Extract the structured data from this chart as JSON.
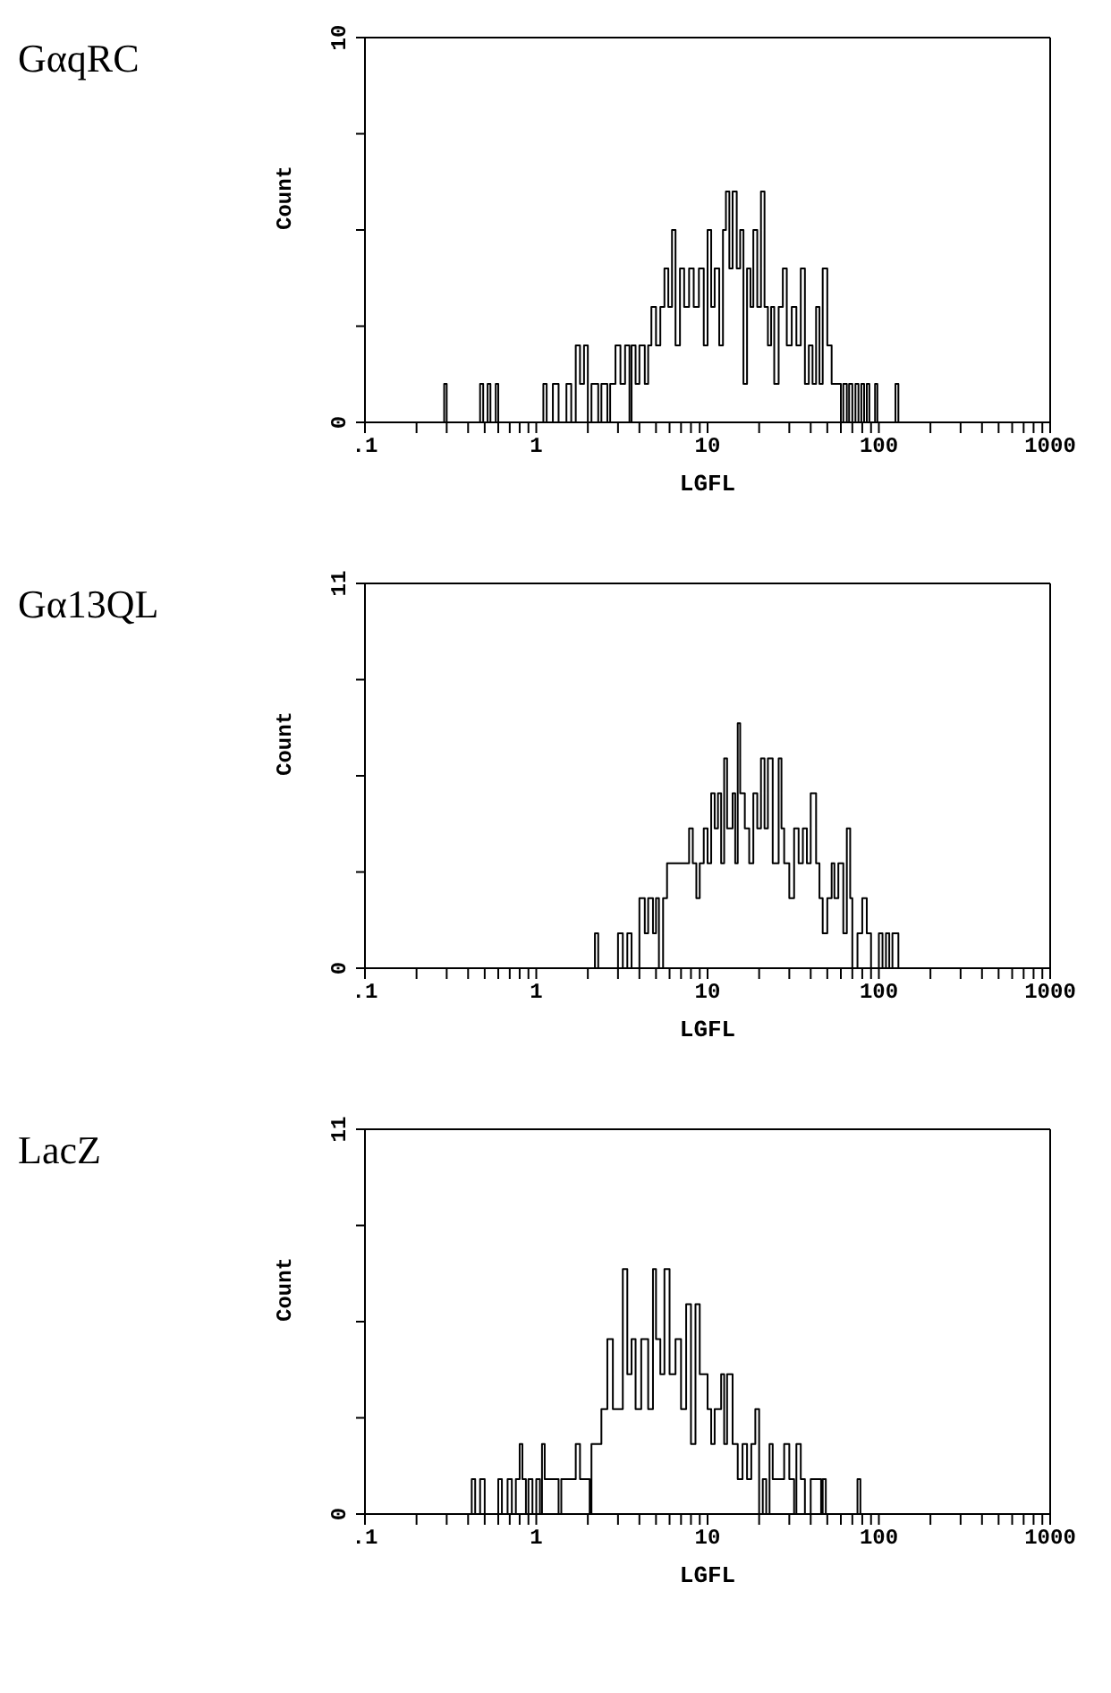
{
  "chart_data": [
    {
      "type": "step",
      "title": "GαqRC",
      "xlabel": "LGFL",
      "ylabel": "Count",
      "log": "x",
      "marker": "none",
      "line_style": "solid",
      "xlim": [
        0.1,
        1000
      ],
      "ylim": [
        0,
        10
      ],
      "xticks": [
        {
          "value": 0.1,
          "label": ".1"
        },
        {
          "value": 0.2,
          "label": null
        },
        {
          "value": 0.3,
          "label": null
        },
        {
          "value": 0.4,
          "label": null
        },
        {
          "value": 0.5,
          "label": null
        },
        {
          "value": 0.6,
          "label": null
        },
        {
          "value": 0.7,
          "label": null
        },
        {
          "value": 0.8,
          "label": null
        },
        {
          "value": 0.9,
          "label": null
        },
        1,
        {
          "value": 2,
          "label": null
        },
        {
          "value": 3,
          "label": null
        },
        {
          "value": 4,
          "label": null
        },
        {
          "value": 5,
          "label": null
        },
        {
          "value": 6,
          "label": null
        },
        {
          "value": 7,
          "label": null
        },
        {
          "value": 8,
          "label": null
        },
        {
          "value": 9,
          "label": null
        },
        10,
        {
          "value": 20,
          "label": null
        },
        {
          "value": 30,
          "label": null
        },
        {
          "value": 40,
          "label": null
        },
        {
          "value": 50,
          "label": null
        },
        {
          "value": 60,
          "label": null
        },
        {
          "value": 70,
          "label": null
        },
        {
          "value": 80,
          "label": null
        },
        {
          "value": 90,
          "label": null
        },
        100,
        {
          "value": 200,
          "label": null
        },
        {
          "value": 300,
          "label": null
        },
        {
          "value": 400,
          "label": null
        },
        {
          "value": 500,
          "label": null
        },
        {
          "value": 600,
          "label": null
        },
        {
          "value": 700,
          "label": null
        },
        {
          "value": 800,
          "label": null
        },
        {
          "value": 900,
          "label": null
        },
        1000
      ],
      "yticks": [
        0,
        {
          "value": 2.5,
          "label": null
        },
        {
          "value": 5,
          "label": null
        },
        {
          "value": 7.5,
          "label": null
        },
        10
      ],
      "series": [
        {
          "color": "#000000",
          "x": [
            0.1,
            0.29,
            0.3,
            0.47,
            0.49,
            0.52,
            0.54,
            0.58,
            0.6,
            1.1,
            1.15,
            1.25,
            1.35,
            1.5,
            1.6,
            1.7,
            1.8,
            1.9,
            2.0,
            2.1,
            2.3,
            2.4,
            2.6,
            2.7,
            2.9,
            3.1,
            3.3,
            3.5,
            3.6,
            3.8,
            4.0,
            4.3,
            4.5,
            4.7,
            5.0,
            5.3,
            5.6,
            5.9,
            6.2,
            6.5,
            6.9,
            7.3,
            7.8,
            8.3,
            8.9,
            9.5,
            10,
            10.5,
            11,
            11.7,
            12.3,
            12.8,
            13.4,
            14,
            14.8,
            15.5,
            16.2,
            17,
            17.8,
            18.5,
            19.5,
            20.5,
            21.5,
            22.5,
            23.5,
            24.5,
            26,
            27.5,
            29,
            31,
            33,
            35,
            37,
            39,
            41,
            43,
            45,
            47,
            50,
            53,
            60,
            62,
            65,
            67,
            70,
            73,
            76,
            79,
            82,
            85,
            88,
            95,
            98,
            125,
            130,
            1000
          ],
          "values": [
            0,
            1,
            0,
            1,
            0,
            1,
            0,
            1,
            0,
            1,
            0,
            1,
            0,
            1,
            0,
            2,
            1,
            2,
            0,
            1,
            0,
            1,
            0,
            1,
            2,
            1,
            2,
            0,
            2,
            1,
            2,
            1,
            2,
            3,
            2,
            3,
            4,
            3,
            5,
            2,
            4,
            3,
            4,
            3,
            4,
            2,
            5,
            3,
            4,
            2,
            5,
            6,
            4,
            6,
            4,
            5,
            1,
            4,
            3,
            5,
            3,
            6,
            3,
            2,
            3,
            1,
            3,
            4,
            2,
            3,
            2,
            4,
            1,
            2,
            1,
            3,
            1,
            4,
            2,
            1,
            0,
            1,
            0,
            1,
            0,
            1,
            0,
            1,
            0,
            1,
            0,
            1,
            0,
            1,
            0,
            0
          ]
        }
      ]
    },
    {
      "type": "step",
      "title": "Gα13QL",
      "xlabel": "LGFL",
      "ylabel": "Count",
      "log": "x",
      "marker": "none",
      "line_style": "solid",
      "xlim": [
        0.1,
        1000
      ],
      "ylim": [
        0,
        11
      ],
      "xticks": [
        {
          "value": 0.1,
          "label": ".1"
        },
        {
          "value": 0.2,
          "label": null
        },
        {
          "value": 0.3,
          "label": null
        },
        {
          "value": 0.4,
          "label": null
        },
        {
          "value": 0.5,
          "label": null
        },
        {
          "value": 0.6,
          "label": null
        },
        {
          "value": 0.7,
          "label": null
        },
        {
          "value": 0.8,
          "label": null
        },
        {
          "value": 0.9,
          "label": null
        },
        1,
        {
          "value": 2,
          "label": null
        },
        {
          "value": 3,
          "label": null
        },
        {
          "value": 4,
          "label": null
        },
        {
          "value": 5,
          "label": null
        },
        {
          "value": 6,
          "label": null
        },
        {
          "value": 7,
          "label": null
        },
        {
          "value": 8,
          "label": null
        },
        {
          "value": 9,
          "label": null
        },
        10,
        {
          "value": 20,
          "label": null
        },
        {
          "value": 30,
          "label": null
        },
        {
          "value": 40,
          "label": null
        },
        {
          "value": 50,
          "label": null
        },
        {
          "value": 60,
          "label": null
        },
        {
          "value": 70,
          "label": null
        },
        {
          "value": 80,
          "label": null
        },
        {
          "value": 90,
          "label": null
        },
        100,
        {
          "value": 200,
          "label": null
        },
        {
          "value": 300,
          "label": null
        },
        {
          "value": 400,
          "label": null
        },
        {
          "value": 500,
          "label": null
        },
        {
          "value": 600,
          "label": null
        },
        {
          "value": 700,
          "label": null
        },
        {
          "value": 800,
          "label": null
        },
        {
          "value": 900,
          "label": null
        },
        1000
      ],
      "yticks": [
        0,
        {
          "value": 2.75,
          "label": null
        },
        {
          "value": 5.5,
          "label": null
        },
        {
          "value": 8.25,
          "label": null
        },
        11
      ],
      "series": [
        {
          "color": "#000000",
          "x": [
            0.1,
            2.2,
            2.3,
            3.0,
            3.2,
            3.4,
            3.6,
            4.0,
            4.3,
            4.5,
            4.8,
            5.0,
            5.2,
            5.5,
            5.8,
            7.8,
            8.2,
            8.6,
            9,
            9.5,
            10,
            10.5,
            11,
            11.5,
            12,
            12.5,
            13,
            14,
            14.5,
            15,
            15.5,
            16.5,
            17.5,
            18.5,
            19.5,
            20.5,
            21.5,
            22.5,
            24,
            26,
            27,
            28,
            30,
            32,
            34,
            36,
            38,
            40,
            43,
            45,
            47,
            50,
            53,
            55,
            58,
            62,
            65,
            68,
            70,
            75,
            80,
            85,
            90,
            100,
            105,
            110,
            115,
            120,
            130,
            1000
          ],
          "values": [
            0,
            1,
            0,
            1,
            0,
            1,
            0,
            2,
            1,
            2,
            1,
            2,
            0,
            2,
            3,
            4,
            3,
            2,
            3,
            4,
            3,
            5,
            4,
            5,
            3,
            6,
            4,
            5,
            3,
            7,
            5,
            4,
            3,
            5,
            4,
            6,
            4,
            6,
            3,
            6,
            4,
            3,
            2,
            4,
            3,
            4,
            3,
            5,
            3,
            2,
            1,
            2,
            3,
            2,
            3,
            1,
            4,
            2,
            0,
            1,
            2,
            1,
            0,
            1,
            0,
            1,
            0,
            1,
            0,
            0
          ]
        }
      ]
    },
    {
      "type": "step",
      "title": "LacZ",
      "xlabel": "LGFL",
      "ylabel": "Count",
      "log": "x",
      "marker": "none",
      "line_style": "solid",
      "xlim": [
        0.1,
        1000
      ],
      "ylim": [
        0,
        11
      ],
      "xticks": [
        {
          "value": 0.1,
          "label": ".1"
        },
        {
          "value": 0.2,
          "label": null
        },
        {
          "value": 0.3,
          "label": null
        },
        {
          "value": 0.4,
          "label": null
        },
        {
          "value": 0.5,
          "label": null
        },
        {
          "value": 0.6,
          "label": null
        },
        {
          "value": 0.7,
          "label": null
        },
        {
          "value": 0.8,
          "label": null
        },
        {
          "value": 0.9,
          "label": null
        },
        1,
        {
          "value": 2,
          "label": null
        },
        {
          "value": 3,
          "label": null
        },
        {
          "value": 4,
          "label": null
        },
        {
          "value": 5,
          "label": null
        },
        {
          "value": 6,
          "label": null
        },
        {
          "value": 7,
          "label": null
        },
        {
          "value": 8,
          "label": null
        },
        {
          "value": 9,
          "label": null
        },
        10,
        {
          "value": 20,
          "label": null
        },
        {
          "value": 30,
          "label": null
        },
        {
          "value": 40,
          "label": null
        },
        {
          "value": 50,
          "label": null
        },
        {
          "value": 60,
          "label": null
        },
        {
          "value": 70,
          "label": null
        },
        {
          "value": 80,
          "label": null
        },
        {
          "value": 90,
          "label": null
        },
        100,
        {
          "value": 200,
          "label": null
        },
        {
          "value": 300,
          "label": null
        },
        {
          "value": 400,
          "label": null
        },
        {
          "value": 500,
          "label": null
        },
        {
          "value": 600,
          "label": null
        },
        {
          "value": 700,
          "label": null
        },
        {
          "value": 800,
          "label": null
        },
        {
          "value": 900,
          "label": null
        },
        1000
      ],
      "yticks": [
        0,
        {
          "value": 2.75,
          "label": null
        },
        {
          "value": 5.5,
          "label": null
        },
        {
          "value": 8.25,
          "label": null
        },
        11
      ],
      "series": [
        {
          "color": "#000000",
          "x": [
            0.1,
            0.42,
            0.44,
            0.47,
            0.5,
            0.6,
            0.63,
            0.68,
            0.72,
            0.76,
            0.8,
            0.83,
            0.87,
            0.9,
            0.95,
            1.0,
            1.05,
            1.08,
            1.12,
            1.35,
            1.4,
            1.7,
            1.8,
            2.05,
            2.1,
            2.4,
            2.6,
            2.8,
            3.2,
            3.4,
            3.6,
            3.8,
            4.1,
            4.5,
            4.8,
            5.0,
            5.3,
            5.6,
            6.0,
            6.5,
            7,
            7.5,
            8,
            8.5,
            9,
            10,
            10.5,
            11,
            12,
            12.5,
            13,
            14,
            15,
            16,
            17,
            18,
            19,
            20,
            21,
            22,
            23,
            24,
            28,
            30,
            32,
            33,
            35,
            37,
            40,
            46,
            47,
            49,
            75,
            78,
            1000
          ],
          "values": [
            0,
            1,
            0,
            1,
            0,
            1,
            0,
            1,
            0,
            1,
            2,
            1,
            0,
            1,
            0,
            1,
            0,
            2,
            1,
            0,
            1,
            2,
            1,
            0,
            2,
            3,
            5,
            3,
            7,
            4,
            5,
            3,
            5,
            3,
            7,
            5,
            4,
            7,
            4,
            5,
            3,
            6,
            2,
            6,
            4,
            3,
            2,
            3,
            4,
            2,
            4,
            2,
            1,
            2,
            1,
            2,
            3,
            0,
            1,
            0,
            2,
            1,
            2,
            1,
            0,
            2,
            1,
            0,
            1,
            0,
            1,
            0,
            1,
            0,
            0
          ]
        }
      ]
    }
  ]
}
